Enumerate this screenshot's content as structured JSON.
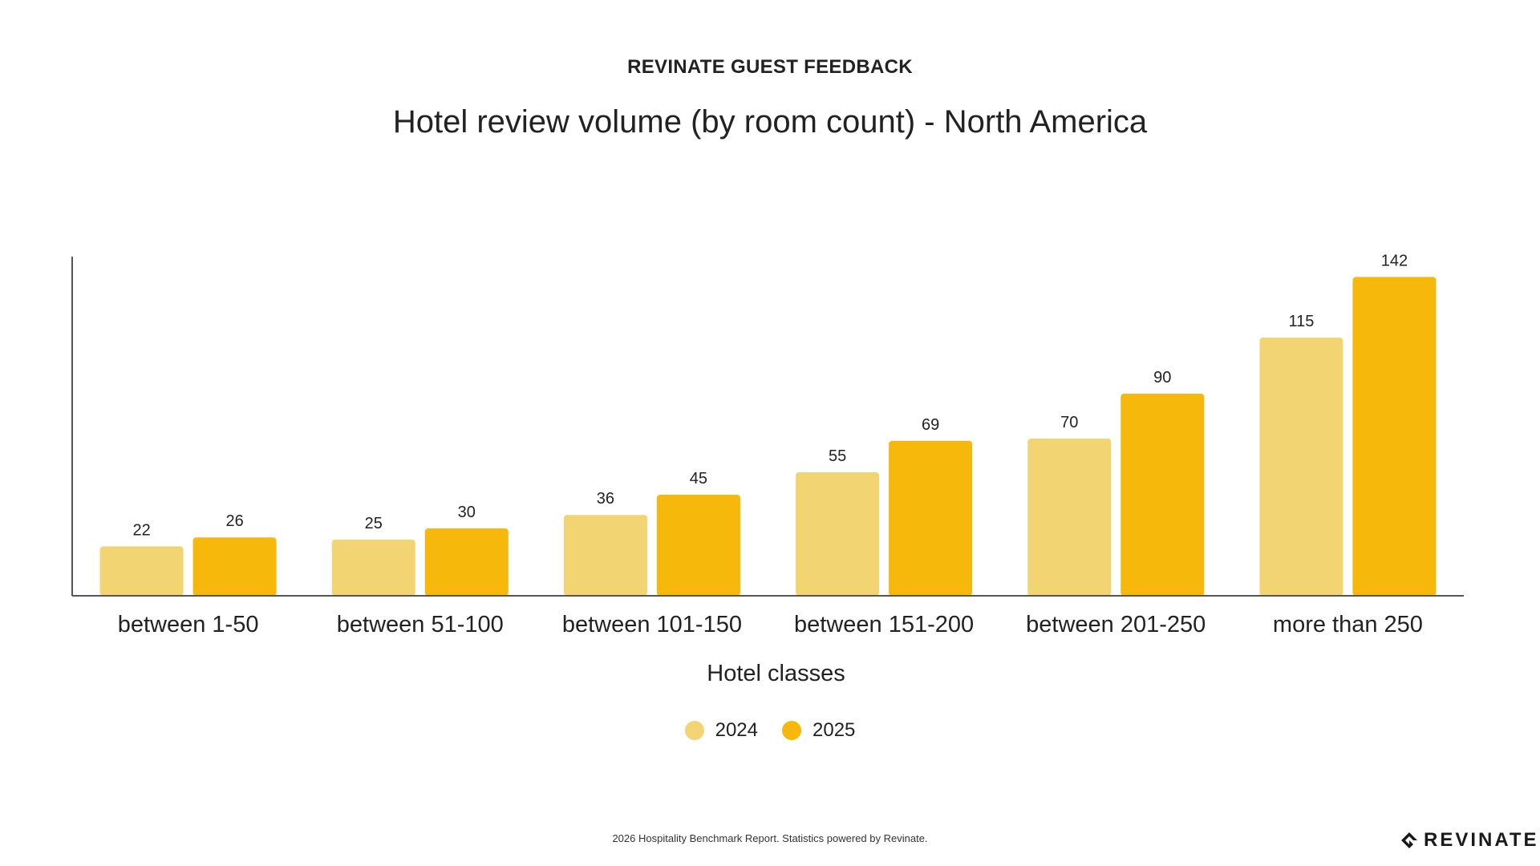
{
  "header": {
    "eyebrow": "REVINATE GUEST FEEDBACK",
    "title": "Hotel review volume (by room count) - North America"
  },
  "footer": {
    "note": "2026 Hospitality Benchmark Report. Statistics powered by Revinate.",
    "brand": "REVINATE",
    "brand_icon": "revinate-logo-icon"
  },
  "colors": {
    "series_2024": "#F2D472",
    "series_2025": "#F6B80B",
    "axis": "#555555"
  },
  "chart_data": {
    "type": "bar",
    "title": "Hotel review volume (by room count) - North America",
    "xlabel": "Hotel classes",
    "ylabel": "",
    "ylim": [
      0,
      150
    ],
    "grid": false,
    "legend": "bottom-center",
    "categories": [
      "between 1-50",
      "between 51-100",
      "between 101-150",
      "between 151-200",
      "between 201-250",
      "more than 250"
    ],
    "series": [
      {
        "name": "2024",
        "values": [
          22,
          25,
          36,
          55,
          70,
          115
        ]
      },
      {
        "name": "2025",
        "values": [
          26,
          30,
          45,
          69,
          90,
          142
        ]
      }
    ]
  }
}
